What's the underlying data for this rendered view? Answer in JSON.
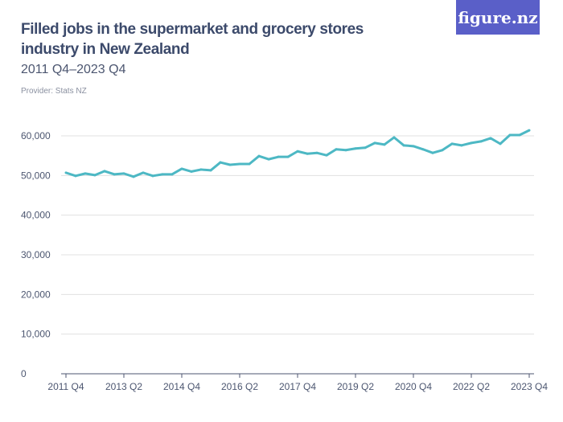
{
  "title": "Filled jobs in the supermarket and grocery stores industry in New Zealand",
  "subtitle": "2011 Q4–2023 Q4",
  "provider": "Provider: Stats NZ",
  "logo": "figure.nz",
  "colors": {
    "line": "#4db8c4",
    "logo_bg": "#5a5fc8",
    "grid": "#e0e0e0"
  },
  "chart_data": {
    "type": "line",
    "title": "Filled jobs in the supermarket and grocery stores industry in New Zealand",
    "ylim": [
      0,
      60000
    ],
    "yticks": [
      0,
      10000,
      20000,
      30000,
      40000,
      50000,
      60000
    ],
    "ytick_labels": [
      "0",
      "10,000",
      "20,000",
      "30,000",
      "40,000",
      "50,000",
      "60,000"
    ],
    "xtick_labels": [
      "2011 Q4",
      "2013 Q2",
      "2014 Q4",
      "2016 Q2",
      "2017 Q4",
      "2019 Q2",
      "2020 Q4",
      "2022 Q2",
      "2023 Q4"
    ],
    "grid": true,
    "x_start": "2011 Q4",
    "x_end": "2023 Q4",
    "values": [
      50700,
      49900,
      50500,
      50100,
      51100,
      50300,
      50500,
      49700,
      50700,
      49900,
      50300,
      50300,
      51700,
      51000,
      51500,
      51300,
      53300,
      52700,
      52900,
      52900,
      54900,
      54100,
      54700,
      54700,
      56100,
      55500,
      55700,
      55100,
      56600,
      56400,
      56800,
      57000,
      58200,
      57800,
      59600,
      57600,
      57400,
      56600,
      55700,
      56400,
      58000,
      57600,
      58200,
      58600,
      59400,
      58000,
      60200,
      60200,
      61400
    ]
  }
}
